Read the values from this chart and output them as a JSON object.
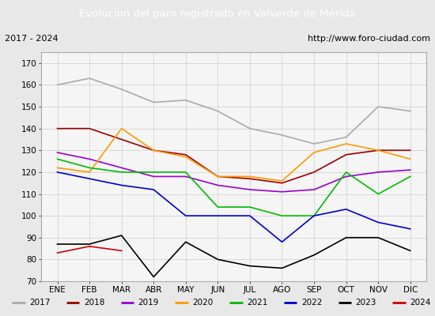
{
  "title": "Evolucion del paro registrado en Valverde de Mérida",
  "title_bg": "#4472c4",
  "subtitle_left": "2017 - 2024",
  "subtitle_right": "http://www.foro-ciudad.com",
  "x_labels": [
    "ENE",
    "FEB",
    "MAR",
    "ABR",
    "MAY",
    "JUN",
    "JUL",
    "AGO",
    "SEP",
    "OCT",
    "NOV",
    "DIC"
  ],
  "ylim": [
    70,
    175
  ],
  "yticks": [
    70,
    80,
    90,
    100,
    110,
    120,
    130,
    140,
    150,
    160,
    170
  ],
  "series_order": [
    "2017",
    "2018",
    "2019",
    "2020",
    "2021",
    "2022",
    "2023",
    "2024"
  ],
  "series": {
    "2017": {
      "color": "#aaaaaa",
      "values": [
        160,
        163,
        158,
        152,
        153,
        148,
        140,
        137,
        133,
        136,
        150,
        148
      ]
    },
    "2018": {
      "color": "#990000",
      "values": [
        140,
        140,
        135,
        130,
        128,
        118,
        117,
        115,
        120,
        128,
        130,
        130
      ]
    },
    "2019": {
      "color": "#9900cc",
      "values": [
        129,
        126,
        122,
        118,
        118,
        114,
        112,
        111,
        112,
        118,
        120,
        121
      ]
    },
    "2020": {
      "color": "#ff9900",
      "values": [
        122,
        120,
        140,
        130,
        127,
        118,
        118,
        116,
        129,
        133,
        130,
        126
      ]
    },
    "2021": {
      "color": "#00bb00",
      "values": [
        126,
        122,
        120,
        120,
        120,
        104,
        104,
        100,
        100,
        120,
        110,
        118
      ]
    },
    "2022": {
      "color": "#0000cc",
      "values": [
        120,
        117,
        114,
        112,
        100,
        100,
        100,
        88,
        100,
        103,
        97,
        94
      ]
    },
    "2023": {
      "color": "#000000",
      "values": [
        87,
        87,
        91,
        72,
        88,
        80,
        77,
        76,
        82,
        90,
        90,
        84
      ]
    },
    "2024": {
      "color": "#cc0000",
      "values": [
        83,
        86,
        84,
        null,
        null,
        null,
        null,
        null,
        null,
        null,
        null,
        null
      ]
    }
  },
  "bg_color": "#e8e8e8",
  "plot_bg": "#f5f5f5",
  "grid_color": "#cccccc",
  "border_color": "#aaaaaa"
}
